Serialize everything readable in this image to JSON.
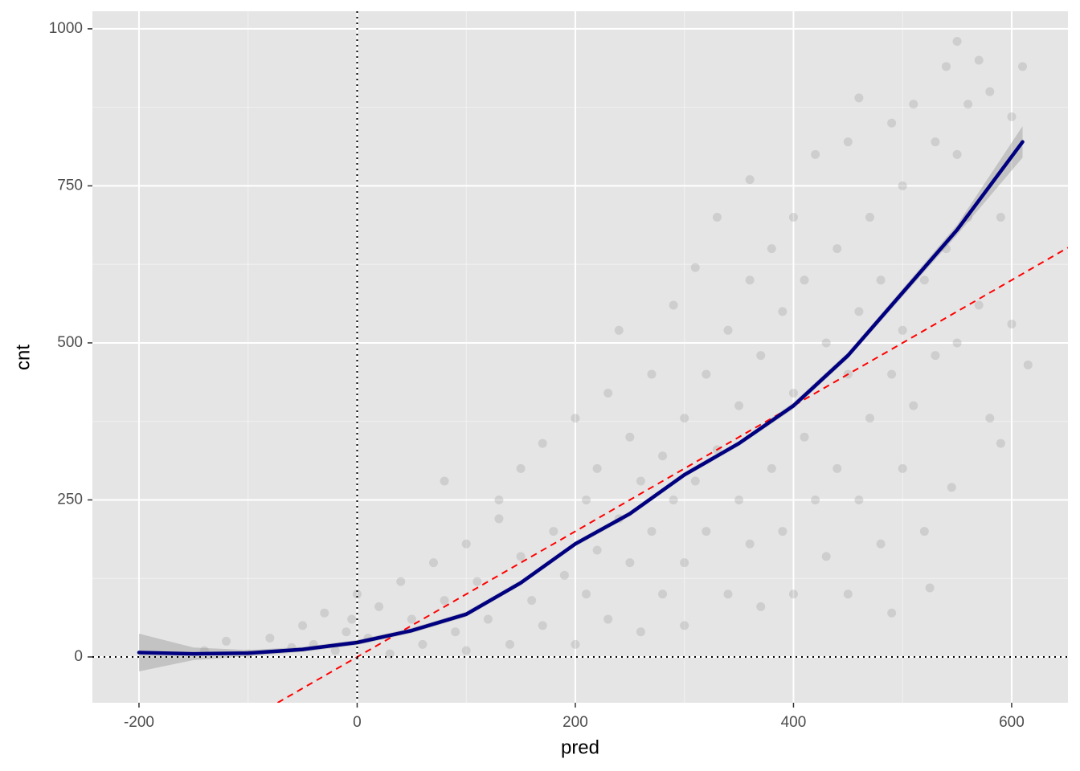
{
  "chart_data": {
    "type": "scatter",
    "x_label": "pred",
    "y_label": "cnt",
    "xlim": [
      -242.7,
      651.6
    ],
    "ylim": [
      -72.9,
      1028
    ],
    "xticks": [
      -200,
      0,
      200,
      400,
      600
    ],
    "yticks": [
      0,
      250,
      500,
      750,
      1000
    ],
    "x_minor": [
      -100,
      100,
      300,
      500
    ],
    "y_minor": [
      125,
      375,
      625,
      875
    ],
    "grid": true,
    "points": {
      "color": "#999999",
      "x": [
        -140,
        -120,
        -100,
        -80,
        -60,
        -50,
        -40,
        -30,
        -20,
        -10,
        0,
        -5,
        10,
        20,
        30,
        40,
        50,
        60,
        70,
        80,
        80,
        90,
        100,
        100,
        110,
        120,
        130,
        130,
        140,
        150,
        150,
        160,
        170,
        170,
        180,
        190,
        200,
        200,
        210,
        210,
        220,
        220,
        230,
        230,
        240,
        240,
        250,
        250,
        260,
        260,
        270,
        270,
        280,
        280,
        290,
        290,
        300,
        300,
        300,
        310,
        310,
        320,
        320,
        330,
        330,
        340,
        340,
        350,
        350,
        360,
        360,
        360,
        370,
        370,
        380,
        380,
        390,
        390,
        400,
        400,
        400,
        410,
        410,
        420,
        420,
        430,
        430,
        440,
        440,
        450,
        450,
        450,
        460,
        460,
        460,
        470,
        470,
        480,
        480,
        490,
        490,
        490,
        500,
        500,
        500,
        510,
        510,
        520,
        520,
        525,
        530,
        530,
        540,
        540,
        545,
        550,
        550,
        550,
        560,
        560,
        570,
        570,
        580,
        580,
        590,
        590,
        600,
        600,
        610,
        615
      ],
      "y": [
        10,
        25,
        5,
        30,
        15,
        50,
        20,
        70,
        10,
        40,
        100,
        60,
        30,
        80,
        5,
        120,
        60,
        20,
        150,
        90,
        280,
        40,
        180,
        10,
        120,
        60,
        220,
        250,
        20,
        160,
        300,
        90,
        50,
        340,
        200,
        130,
        380,
        20,
        250,
        100,
        300,
        170,
        60,
        420,
        220,
        520,
        150,
        350,
        280,
        40,
        450,
        200,
        100,
        320,
        560,
        250,
        380,
        150,
        50,
        620,
        280,
        450,
        200,
        700,
        330,
        100,
        520,
        250,
        400,
        760,
        600,
        180,
        480,
        80,
        300,
        650,
        550,
        200,
        420,
        700,
        100,
        350,
        600,
        250,
        800,
        500,
        160,
        650,
        300,
        820,
        450,
        100,
        550,
        890,
        250,
        700,
        380,
        600,
        180,
        850,
        450,
        70,
        520,
        750,
        300,
        880,
        400,
        600,
        200,
        110,
        820,
        480,
        940,
        650,
        270,
        980,
        800,
        500,
        700,
        880,
        560,
        950,
        380,
        900,
        700,
        340,
        530,
        860,
        940,
        465
      ]
    },
    "smooth": {
      "color": "#000080",
      "x": [
        -200,
        -150,
        -100,
        -50,
        0,
        50,
        100,
        150,
        200,
        250,
        300,
        350,
        400,
        450,
        500,
        550,
        610
      ],
      "y": [
        7,
        5,
        6,
        12,
        23,
        42,
        68,
        118,
        180,
        228,
        290,
        340,
        400,
        480,
        580,
        680,
        820
      ],
      "lower": [
        -23,
        -5,
        1,
        8,
        19,
        38,
        64,
        114,
        176,
        224,
        286,
        336,
        395,
        475,
        574,
        672,
        795
      ],
      "upper": [
        37,
        15,
        11,
        16,
        27,
        46,
        72,
        122,
        184,
        232,
        294,
        344,
        405,
        485,
        586,
        688,
        845
      ]
    },
    "reference_line": {
      "slope": 1,
      "intercept": 0,
      "color": "#ff0000"
    },
    "vline": 0,
    "hline": 0
  }
}
